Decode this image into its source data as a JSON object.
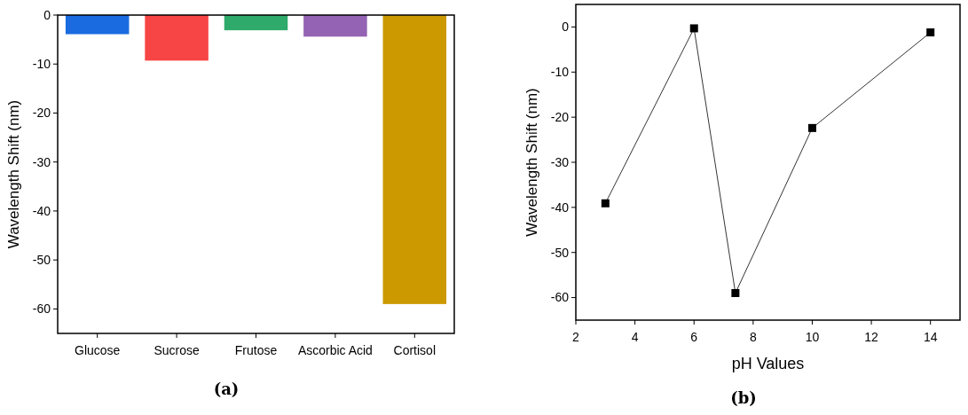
{
  "chart_data": [
    {
      "type": "bar",
      "title": "(a)",
      "ylabel": "Wavelength Shift (nm)",
      "categories": [
        "Glucose",
        "Sucrose",
        "Frutose",
        "Ascorbic Acid",
        "Cortisol"
      ],
      "values": [
        -3.9,
        -9.3,
        -3.1,
        -4.4,
        -59
      ],
      "colors": [
        "#1a6be0",
        "#f74545",
        "#2eaa6a",
        "#9463b3",
        "#cc9900"
      ],
      "ylim": [
        -65,
        0
      ],
      "yticks": [
        -60,
        -50,
        -40,
        -30,
        -20,
        -10,
        0
      ],
      "grid": false
    },
    {
      "type": "line",
      "title": "(b)",
      "xlabel": "pH Values",
      "ylabel": "Wavelength Shift (nm)",
      "x": [
        3,
        6,
        7.4,
        10,
        14
      ],
      "series": [
        {
          "color": "#000000",
          "values": [
            -39.1,
            -0.3,
            -59,
            -22.4,
            -1.2
          ]
        }
      ],
      "marker": "square",
      "line_style": "solid",
      "xlim": [
        2,
        15
      ],
      "xticks": [
        2,
        4,
        6,
        8,
        10,
        12,
        14
      ],
      "ylim": [
        -65,
        5
      ],
      "yticks": [
        -60,
        -50,
        -40,
        -30,
        -20,
        -10,
        0
      ],
      "grid": false
    }
  ]
}
